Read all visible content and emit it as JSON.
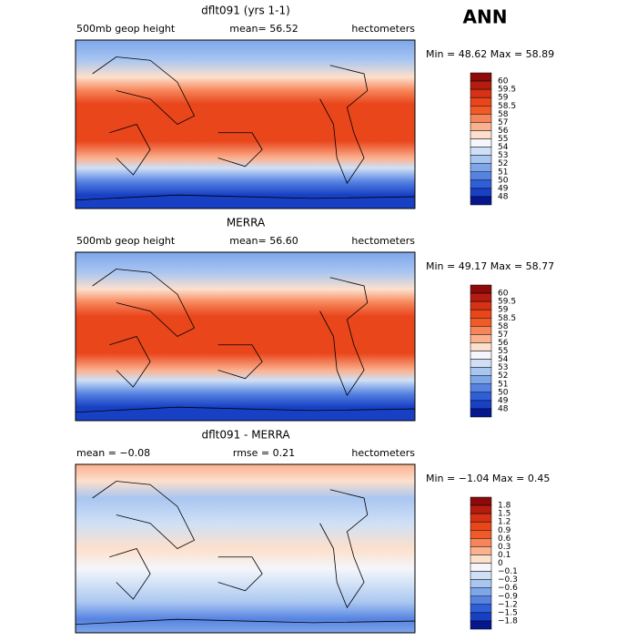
{
  "header": {
    "title": "ANN"
  },
  "panels": [
    {
      "title": "dflt091 (yrs 1-1)",
      "left": "500mb geop height",
      "middle": "mean=  56.52",
      "right": "hectometers",
      "stats": "Min =  48.62 Max =  58.89",
      "levels": [
        "60",
        "59.5",
        "59",
        "58.5",
        "58",
        "57",
        "56",
        "55",
        "54",
        "53",
        "52",
        "51",
        "50",
        "49",
        "48"
      ],
      "colors": [
        "#8c0a0a",
        "#b51c10",
        "#d63216",
        "#e9461c",
        "#f05a28",
        "#f7855a",
        "#fbb08e",
        "#fde0cc",
        "#f4f6fb",
        "#cfe0f6",
        "#a9c6f1",
        "#7ea6ea",
        "#5683e2",
        "#2f5fd8",
        "#1840c4",
        "#06168f"
      ]
    },
    {
      "title": "MERRA",
      "left": "500mb geop height",
      "middle": "mean=  56.60",
      "right": "hectometers",
      "stats": "Min =  49.17 Max =  58.77",
      "levels": [
        "60",
        "59.5",
        "59",
        "58.5",
        "58",
        "57",
        "56",
        "55",
        "54",
        "53",
        "52",
        "51",
        "50",
        "49",
        "48"
      ],
      "colors": [
        "#8c0a0a",
        "#b51c10",
        "#d63216",
        "#e9461c",
        "#f05a28",
        "#f7855a",
        "#fbb08e",
        "#fde0cc",
        "#f4f6fb",
        "#cfe0f6",
        "#a9c6f1",
        "#7ea6ea",
        "#5683e2",
        "#2f5fd8",
        "#1840c4",
        "#06168f"
      ]
    },
    {
      "title": "dflt091 - MERRA",
      "left": "mean =  −0.08",
      "middle": "rmse =   0.21",
      "right": "hectometers",
      "stats": "Min =  −1.04 Max =   0.45",
      "levels": [
        "1.8",
        "1.5",
        "1.2",
        "0.9",
        "0.6",
        "0.3",
        "0.1",
        "0",
        "−0.1",
        "−0.3",
        "−0.6",
        "−0.9",
        "−1.2",
        "−1.5",
        "−1.8"
      ],
      "colors": [
        "#8c0a0a",
        "#b51c10",
        "#d63216",
        "#e9461c",
        "#f05a28",
        "#f7855a",
        "#fbb08e",
        "#fde0cc",
        "#f4f6fb",
        "#cfe0f6",
        "#a9c6f1",
        "#7ea6ea",
        "#5683e2",
        "#2f5fd8",
        "#1840c4",
        "#06168f"
      ]
    }
  ]
}
